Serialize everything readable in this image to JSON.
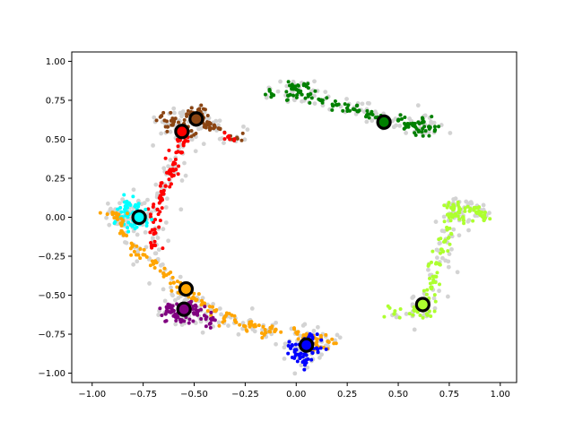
{
  "chart_data": {
    "type": "scatter",
    "title": "",
    "xlabel": "",
    "ylabel": "",
    "xlim": [
      -1.1,
      1.08
    ],
    "ylim": [
      -1.06,
      1.06
    ],
    "grid": false,
    "legend": "none",
    "xticks": [
      "−1.00",
      "−0.75",
      "−0.50",
      "−0.25",
      "0.00",
      "0.25",
      "0.50",
      "0.75",
      "1.00"
    ],
    "xtick_values": [
      -1.0,
      -0.75,
      -0.5,
      -0.25,
      0.0,
      0.25,
      0.5,
      0.75,
      1.0
    ],
    "yticks": [
      "1.00",
      "0.75",
      "0.50",
      "0.25",
      "0.00",
      "−0.25",
      "−0.50",
      "−0.75",
      "−1.00"
    ],
    "ytick_values": [
      1.0,
      0.75,
      0.5,
      0.25,
      0.0,
      -0.25,
      -0.5,
      -0.75,
      -1.0
    ],
    "background_points_color": "#d3d3d3",
    "clusters": [
      {
        "color": "#008000",
        "points": [
          [
            0.0,
            0.82
          ],
          [
            0.02,
            0.8
          ],
          [
            -0.04,
            0.78
          ],
          [
            0.05,
            0.84
          ],
          [
            -0.02,
            0.85
          ],
          [
            0.07,
            0.79
          ],
          [
            0.12,
            0.75
          ],
          [
            0.2,
            0.72
          ],
          [
            0.3,
            0.68
          ],
          [
            0.4,
            0.64
          ],
          [
            0.5,
            0.62
          ],
          [
            0.58,
            0.6
          ],
          [
            0.6,
            0.55
          ],
          [
            0.65,
            0.58
          ],
          [
            0.62,
            0.63
          ],
          [
            0.68,
            0.56
          ],
          [
            -0.13,
            0.81
          ],
          [
            0.25,
            0.7
          ],
          [
            0.35,
            0.66
          ],
          [
            0.55,
            0.58
          ]
        ]
      },
      {
        "color": "#8b4513",
        "points": [
          [
            -0.6,
            0.62
          ],
          [
            -0.55,
            0.6
          ],
          [
            -0.5,
            0.64
          ],
          [
            -0.45,
            0.58
          ],
          [
            -0.52,
            0.66
          ],
          [
            -0.58,
            0.56
          ],
          [
            -0.47,
            0.63
          ],
          [
            -0.42,
            0.6
          ],
          [
            -0.66,
            0.65
          ],
          [
            -0.63,
            0.58
          ],
          [
            -0.38,
            0.57
          ],
          [
            -0.48,
            0.69
          ],
          [
            -0.53,
            0.55
          ],
          [
            -0.29,
            0.51
          ]
        ]
      },
      {
        "color": "#ff0000",
        "points": [
          [
            -0.57,
            0.5
          ],
          [
            -0.58,
            0.42
          ],
          [
            -0.6,
            0.35
          ],
          [
            -0.62,
            0.28
          ],
          [
            -0.64,
            0.2
          ],
          [
            -0.66,
            0.12
          ],
          [
            -0.68,
            0.05
          ],
          [
            -0.7,
            -0.02
          ],
          [
            -0.69,
            -0.1
          ],
          [
            -0.7,
            -0.18
          ],
          [
            -0.55,
            0.48
          ],
          [
            -0.6,
            0.3
          ],
          [
            -0.65,
            0.15
          ],
          [
            -0.33,
            0.52
          ]
        ]
      },
      {
        "color": "#00ffff",
        "points": [
          [
            -0.82,
            0.02
          ],
          [
            -0.8,
            -0.02
          ],
          [
            -0.78,
            0.0
          ],
          [
            -0.84,
            0.05
          ],
          [
            -0.76,
            0.03
          ],
          [
            -0.81,
            -0.05
          ],
          [
            -0.86,
            0.0
          ],
          [
            -0.79,
            0.07
          ],
          [
            -0.74,
            -0.02
          ],
          [
            -0.83,
            0.1
          ]
        ]
      },
      {
        "color": "#ffa500",
        "points": [
          [
            -0.88,
            0.0
          ],
          [
            -0.9,
            0.02
          ],
          [
            -0.86,
            -0.04
          ],
          [
            -0.85,
            -0.1
          ],
          [
            -0.8,
            -0.18
          ],
          [
            -0.75,
            -0.24
          ],
          [
            -0.7,
            -0.3
          ],
          [
            -0.65,
            -0.36
          ],
          [
            -0.6,
            -0.42
          ],
          [
            -0.55,
            -0.48
          ],
          [
            -0.5,
            -0.52
          ],
          [
            -0.45,
            -0.56
          ],
          [
            -0.4,
            -0.6
          ],
          [
            -0.35,
            -0.64
          ],
          [
            -0.3,
            -0.66
          ],
          [
            -0.2,
            -0.7
          ],
          [
            -0.1,
            -0.72
          ],
          [
            0.0,
            -0.74
          ],
          [
            0.05,
            -0.76
          ],
          [
            0.12,
            -0.78
          ],
          [
            0.16,
            -0.8
          ],
          [
            0.1,
            -0.82
          ],
          [
            -0.25,
            -0.7
          ],
          [
            -0.15,
            -0.74
          ]
        ]
      },
      {
        "color": "#800080",
        "points": [
          [
            -0.6,
            -0.6
          ],
          [
            -0.55,
            -0.58
          ],
          [
            -0.5,
            -0.62
          ],
          [
            -0.58,
            -0.64
          ],
          [
            -0.52,
            -0.56
          ],
          [
            -0.62,
            -0.58
          ],
          [
            -0.48,
            -0.6
          ],
          [
            -0.56,
            -0.66
          ],
          [
            -0.64,
            -0.62
          ],
          [
            -0.44,
            -0.64
          ],
          [
            -0.42,
            -0.68
          ]
        ]
      },
      {
        "color": "#0000ff",
        "points": [
          [
            0.0,
            -0.85
          ],
          [
            0.05,
            -0.83
          ],
          [
            0.08,
            -0.87
          ],
          [
            0.02,
            -0.9
          ],
          [
            0.06,
            -0.8
          ],
          [
            -0.02,
            -0.82
          ],
          [
            0.1,
            -0.84
          ],
          [
            0.04,
            -0.93
          ],
          [
            0.08,
            -0.77
          ],
          [
            0.0,
            -0.88
          ]
        ]
      },
      {
        "color": "#adff2f",
        "points": [
          [
            0.62,
            -0.55
          ],
          [
            0.6,
            -0.58
          ],
          [
            0.65,
            -0.52
          ],
          [
            0.66,
            -0.45
          ],
          [
            0.68,
            -0.38
          ],
          [
            0.7,
            -0.3
          ],
          [
            0.72,
            -0.22
          ],
          [
            0.73,
            -0.15
          ],
          [
            0.74,
            -0.08
          ],
          [
            0.75,
            0.0
          ],
          [
            0.76,
            0.06
          ],
          [
            0.78,
            0.02
          ],
          [
            0.8,
            0.05
          ],
          [
            0.85,
            0.04
          ],
          [
            0.9,
            0.02
          ],
          [
            0.92,
            -0.02
          ],
          [
            0.88,
            0.06
          ],
          [
            0.82,
            -0.02
          ],
          [
            0.77,
            0.08
          ],
          [
            0.58,
            -0.6
          ],
          [
            0.64,
            -0.62
          ],
          [
            0.48,
            -0.62
          ]
        ]
      }
    ],
    "centroids": [
      {
        "x": 0.43,
        "y": 0.61,
        "color": "#000000"
      },
      {
        "x": -0.49,
        "y": 0.63,
        "color": "#000000"
      },
      {
        "x": -0.56,
        "y": 0.55,
        "color": "#000000"
      },
      {
        "x": -0.77,
        "y": 0.0,
        "color": "#000000"
      },
      {
        "x": -0.54,
        "y": -0.46,
        "color": "#000000"
      },
      {
        "x": -0.55,
        "y": -0.59,
        "color": "#000000"
      },
      {
        "x": 0.05,
        "y": -0.82,
        "color": "#000000"
      },
      {
        "x": 0.62,
        "y": -0.56,
        "color": "#000000"
      }
    ],
    "centroid_fills": [
      "#008000",
      "#8b4513",
      "#ff0000",
      "#00ffff",
      "#ffa500",
      "#800080",
      "#0000ff",
      "#adff2f"
    ]
  }
}
